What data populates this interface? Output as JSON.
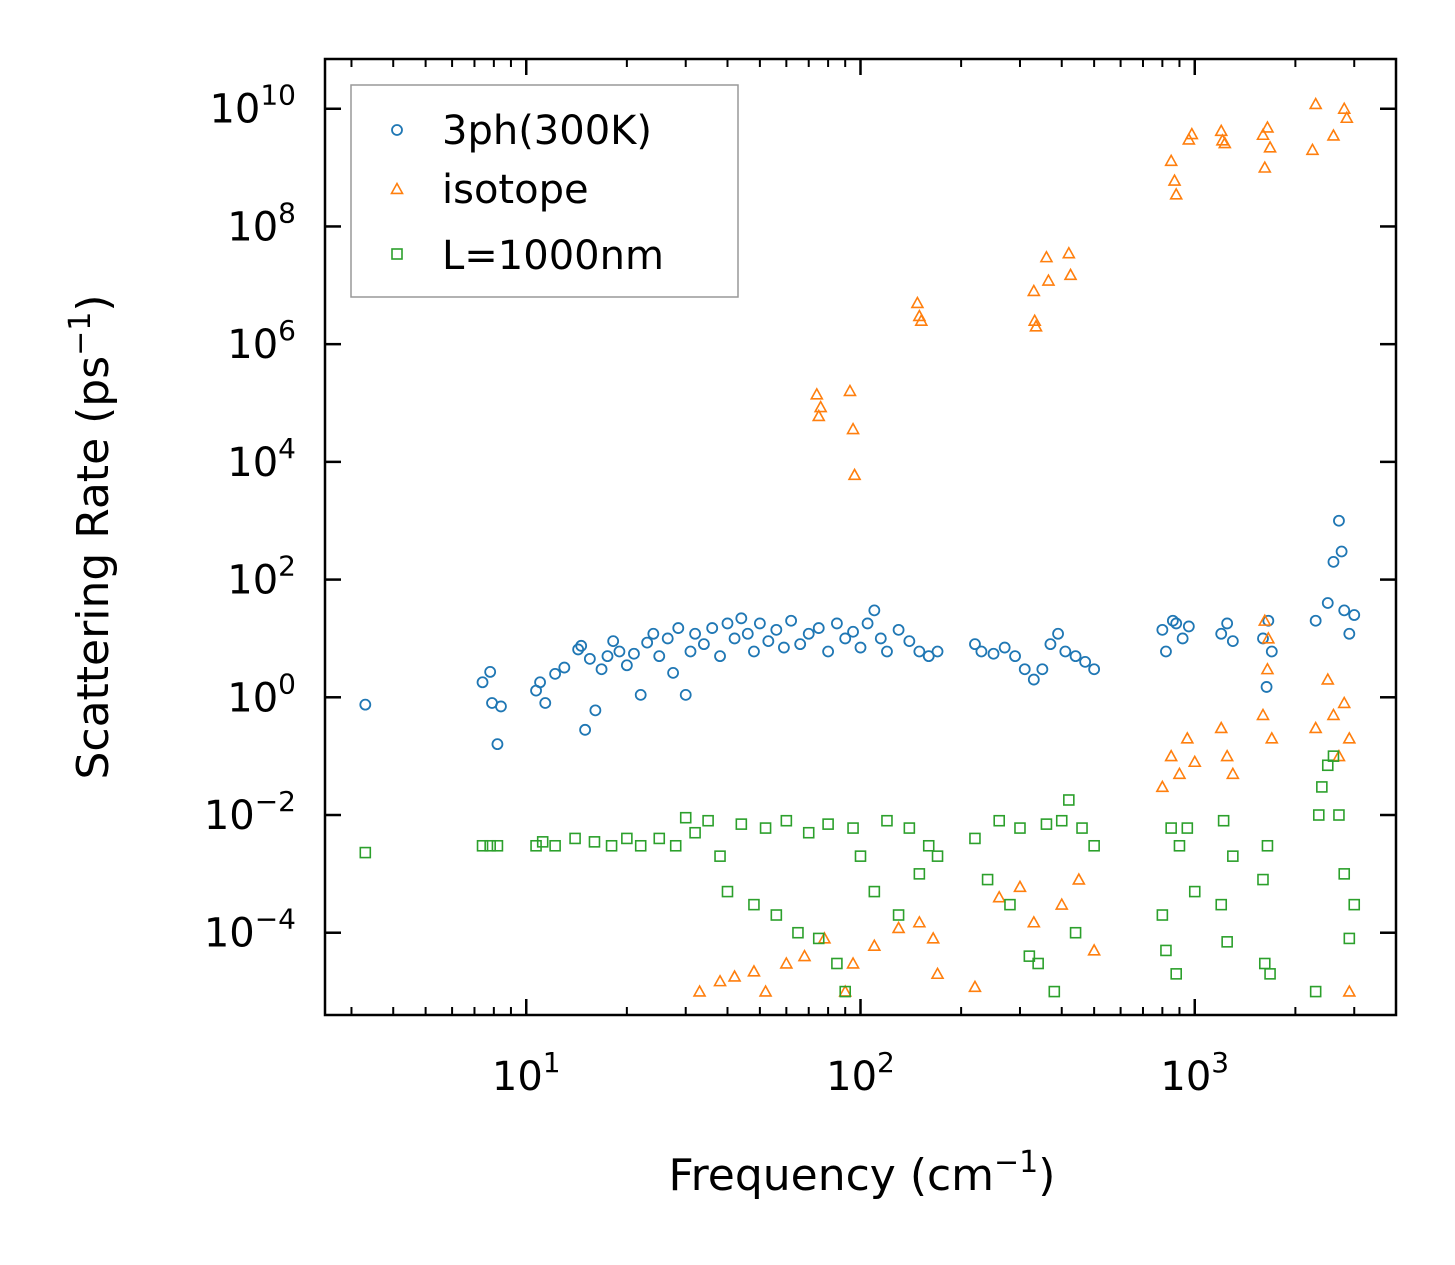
{
  "chart_data": {
    "type": "scatter",
    "title": "",
    "xlabel": "Frequency (cm",
    "xlabel_sup": "−1",
    "xlabel_end": ")",
    "ylabel": "Scattering Rate (ps",
    "ylabel_sup": "−1",
    "ylabel_end": ")",
    "xscale": "log",
    "yscale": "log",
    "xlim": [
      2.5,
      4000
    ],
    "ylim": [
      4e-06,
      70000000000
    ],
    "x_ticks": [
      {
        "value": 10,
        "base": "10",
        "exp": "1"
      },
      {
        "value": 100,
        "base": "10",
        "exp": "2"
      },
      {
        "value": 1000,
        "base": "10",
        "exp": "3"
      }
    ],
    "y_ticks": [
      {
        "value": 0.0001,
        "base": "10",
        "exp": "−4"
      },
      {
        "value": 0.01,
        "base": "10",
        "exp": "−2"
      },
      {
        "value": 1,
        "base": "10",
        "exp": "0"
      },
      {
        "value": 100,
        "base": "10",
        "exp": "2"
      },
      {
        "value": 10000,
        "base": "10",
        "exp": "4"
      },
      {
        "value": 1000000,
        "base": "10",
        "exp": "6"
      },
      {
        "value": 100000000,
        "base": "10",
        "exp": "8"
      },
      {
        "value": 10000000000,
        "base": "10",
        "exp": "10"
      }
    ],
    "legend_position": "top-left",
    "series": [
      {
        "name": "3ph(300K)",
        "marker": "circle",
        "color": "#1f77b4",
        "points": [
          [
            3.3,
            0.75
          ],
          [
            7.4,
            1.8
          ],
          [
            7.8,
            2.7
          ],
          [
            7.9,
            0.8
          ],
          [
            8.2,
            0.16
          ],
          [
            8.4,
            0.7
          ],
          [
            10.7,
            1.3
          ],
          [
            11.0,
            1.8
          ],
          [
            11.4,
            0.8
          ],
          [
            12.2,
            2.5
          ],
          [
            13.0,
            3.2
          ],
          [
            14.3,
            6.5
          ],
          [
            14.6,
            7.5
          ],
          [
            15.0,
            0.28
          ],
          [
            15.5,
            4.5
          ],
          [
            16.1,
            0.6
          ],
          [
            16.8,
            3.0
          ],
          [
            17.5,
            5.0
          ],
          [
            18.2,
            9.0
          ],
          [
            19.0,
            6.0
          ],
          [
            20.0,
            3.5
          ],
          [
            21.0,
            5.5
          ],
          [
            22.0,
            1.1
          ],
          [
            23.0,
            8.5
          ],
          [
            24.0,
            12.0
          ],
          [
            25.0,
            5.0
          ],
          [
            26.5,
            10.0
          ],
          [
            27.5,
            2.6
          ],
          [
            28.5,
            15.0
          ],
          [
            30.0,
            1.1
          ],
          [
            31.0,
            6.0
          ],
          [
            32.0,
            12.0
          ],
          [
            34.0,
            8.0
          ],
          [
            36.0,
            15.0
          ],
          [
            38.0,
            5.0
          ],
          [
            40.0,
            18.0
          ],
          [
            42.0,
            10.0
          ],
          [
            44.0,
            22.0
          ],
          [
            46.0,
            12.0
          ],
          [
            48.0,
            6.0
          ],
          [
            50.0,
            18.0
          ],
          [
            53.0,
            9.0
          ],
          [
            56.0,
            14.0
          ],
          [
            59.0,
            7.0
          ],
          [
            62.0,
            20.0
          ],
          [
            66.0,
            8.0
          ],
          [
            70.0,
            12.0
          ],
          [
            75.0,
            15.0
          ],
          [
            80.0,
            6.0
          ],
          [
            85.0,
            18.0
          ],
          [
            90.0,
            10.0
          ],
          [
            95.0,
            13.0
          ],
          [
            100.0,
            7.0
          ],
          [
            105.0,
            18.0
          ],
          [
            110.0,
            30.0
          ],
          [
            115.0,
            10.0
          ],
          [
            120.0,
            6.0
          ],
          [
            130.0,
            14.0
          ],
          [
            140.0,
            9.0
          ],
          [
            150.0,
            6.0
          ],
          [
            160.0,
            5.0
          ],
          [
            170.0,
            6.0
          ],
          [
            220.0,
            8.0
          ],
          [
            230.0,
            6.0
          ],
          [
            250.0,
            5.5
          ],
          [
            270.0,
            7.0
          ],
          [
            290.0,
            5.0
          ],
          [
            310.0,
            3.0
          ],
          [
            330.0,
            2.0
          ],
          [
            350.0,
            3.0
          ],
          [
            370.0,
            8.0
          ],
          [
            390.0,
            12.0
          ],
          [
            410.0,
            6.0
          ],
          [
            440.0,
            5.0
          ],
          [
            470.0,
            4.0
          ],
          [
            500.0,
            3.0
          ],
          [
            800.0,
            14.0
          ],
          [
            820.0,
            6.0
          ],
          [
            860.0,
            20.0
          ],
          [
            880.0,
            18.0
          ],
          [
            920.0,
            10.0
          ],
          [
            960.0,
            16.0
          ],
          [
            1200.0,
            12.0
          ],
          [
            1250.0,
            18.0
          ],
          [
            1300.0,
            9.0
          ],
          [
            1600.0,
            10.0
          ],
          [
            1640.0,
            1.5
          ],
          [
            1660.0,
            20.0
          ],
          [
            1700.0,
            6.0
          ],
          [
            2300.0,
            20.0
          ],
          [
            2500.0,
            40.0
          ],
          [
            2600.0,
            200.0
          ],
          [
            2700.0,
            1000.0
          ],
          [
            2750.0,
            300.0
          ],
          [
            2800.0,
            30.0
          ],
          [
            2900.0,
            12.0
          ],
          [
            3000.0,
            25.0
          ]
        ]
      },
      {
        "name": "isotope",
        "marker": "triangle",
        "color": "#ff7f0e",
        "points": [
          [
            33.0,
            1e-05
          ],
          [
            38.0,
            1.5e-05
          ],
          [
            42.0,
            1.8e-05
          ],
          [
            48.0,
            2.2e-05
          ],
          [
            52.0,
            1e-05
          ],
          [
            60.0,
            3e-05
          ],
          [
            68.0,
            4e-05
          ],
          [
            78.0,
            8e-05
          ],
          [
            90.0,
            1e-05
          ],
          [
            95.0,
            3e-05
          ],
          [
            110.0,
            6e-05
          ],
          [
            130.0,
            0.00012
          ],
          [
            150.0,
            0.00015
          ],
          [
            165.0,
            8e-05
          ],
          [
            170.0,
            2e-05
          ],
          [
            220.0,
            1.2e-05
          ],
          [
            260.0,
            0.0004
          ],
          [
            300.0,
            0.0006
          ],
          [
            330.0,
            0.00015
          ],
          [
            400.0,
            0.0003
          ],
          [
            450.0,
            0.0008
          ],
          [
            500.0,
            5e-05
          ],
          [
            74.0,
            140000
          ],
          [
            75.0,
            60000
          ],
          [
            76.0,
            85000
          ],
          [
            93.0,
            160000
          ],
          [
            95.0,
            36000
          ],
          [
            96.0,
            6000
          ],
          [
            148.0,
            5000000
          ],
          [
            150.0,
            3000000
          ],
          [
            152.0,
            2500000
          ],
          [
            330.0,
            8000000
          ],
          [
            332.0,
            2500000
          ],
          [
            335.0,
            2000000
          ],
          [
            360.0,
            30000000
          ],
          [
            365.0,
            12000000
          ],
          [
            420.0,
            35000000
          ],
          [
            425.0,
            15000000
          ],
          [
            850.0,
            1300000000
          ],
          [
            870.0,
            600000000
          ],
          [
            880.0,
            350000000
          ],
          [
            960.0,
            3000000000
          ],
          [
            980.0,
            3700000000
          ],
          [
            1200.0,
            4200000000
          ],
          [
            1210.0,
            2900000000
          ],
          [
            1230.0,
            2600000000
          ],
          [
            1600.0,
            3600000000
          ],
          [
            1620.0,
            1000000000
          ],
          [
            1650.0,
            4800000000
          ],
          [
            1680.0,
            2200000000
          ],
          [
            2250.0,
            2000000000
          ],
          [
            2300.0,
            12000000000
          ],
          [
            2600.0,
            3500000000
          ],
          [
            2800.0,
            10000000000
          ],
          [
            2850.0,
            7000000000
          ],
          [
            800.0,
            0.03
          ],
          [
            850.0,
            0.1
          ],
          [
            900.0,
            0.05
          ],
          [
            950.0,
            0.2
          ],
          [
            1000.0,
            0.08
          ],
          [
            1200.0,
            0.3
          ],
          [
            1250.0,
            0.1
          ],
          [
            1300.0,
            0.05
          ],
          [
            1600.0,
            0.5
          ],
          [
            1650.0,
            3.0
          ],
          [
            1700.0,
            0.2
          ],
          [
            2300.0,
            0.3
          ],
          [
            2500.0,
            2.0
          ],
          [
            2600.0,
            0.5
          ],
          [
            2700.0,
            0.1
          ],
          [
            2800.0,
            0.8
          ],
          [
            2900.0,
            0.2
          ],
          [
            1620.0,
            20.0
          ],
          [
            1660.0,
            10.0
          ],
          [
            2900.0,
            1e-05
          ]
        ]
      },
      {
        "name": "L=1000nm",
        "marker": "square",
        "color": "#2ca02c",
        "points": [
          [
            3.3,
            0.0023
          ],
          [
            7.4,
            0.003
          ],
          [
            7.8,
            0.003
          ],
          [
            8.2,
            0.003
          ],
          [
            10.7,
            0.003
          ],
          [
            11.2,
            0.0035
          ],
          [
            12.2,
            0.003
          ],
          [
            14.0,
            0.004
          ],
          [
            16.0,
            0.0035
          ],
          [
            18.0,
            0.003
          ],
          [
            20.0,
            0.004
          ],
          [
            22.0,
            0.003
          ],
          [
            25.0,
            0.004
          ],
          [
            28.0,
            0.003
          ],
          [
            30.0,
            0.009
          ],
          [
            32.0,
            0.005
          ],
          [
            35.0,
            0.008
          ],
          [
            38.0,
            0.002
          ],
          [
            40.0,
            0.0005
          ],
          [
            44.0,
            0.007
          ],
          [
            48.0,
            0.0003
          ],
          [
            52.0,
            0.006
          ],
          [
            56.0,
            0.0002
          ],
          [
            60.0,
            0.008
          ],
          [
            65.0,
            0.0001
          ],
          [
            70.0,
            0.005
          ],
          [
            75.0,
            8e-05
          ],
          [
            80.0,
            0.007
          ],
          [
            85.0,
            3e-05
          ],
          [
            90.0,
            1e-05
          ],
          [
            95.0,
            0.006
          ],
          [
            100.0,
            0.002
          ],
          [
            110.0,
            0.0005
          ],
          [
            120.0,
            0.008
          ],
          [
            130.0,
            0.0002
          ],
          [
            140.0,
            0.006
          ],
          [
            150.0,
            0.001
          ],
          [
            160.0,
            0.003
          ],
          [
            170.0,
            0.002
          ],
          [
            220.0,
            0.004
          ],
          [
            240.0,
            0.0008
          ],
          [
            260.0,
            0.008
          ],
          [
            280.0,
            0.0003
          ],
          [
            300.0,
            0.006
          ],
          [
            320.0,
            4e-05
          ],
          [
            340.0,
            3e-05
          ],
          [
            360.0,
            0.007
          ],
          [
            380.0,
            1e-05
          ],
          [
            400.0,
            0.008
          ],
          [
            420.0,
            0.018
          ],
          [
            440.0,
            0.0001
          ],
          [
            460.0,
            0.006
          ],
          [
            500.0,
            0.003
          ],
          [
            800.0,
            0.0002
          ],
          [
            820.0,
            5e-05
          ],
          [
            850.0,
            0.006
          ],
          [
            880.0,
            2e-05
          ],
          [
            900.0,
            0.003
          ],
          [
            950.0,
            0.006
          ],
          [
            1000.0,
            0.0005
          ],
          [
            1200.0,
            0.0003
          ],
          [
            1220.0,
            0.008
          ],
          [
            1250.0,
            7e-05
          ],
          [
            1300.0,
            0.002
          ],
          [
            1600.0,
            0.0008
          ],
          [
            1620.0,
            3e-05
          ],
          [
            1650.0,
            0.003
          ],
          [
            1680.0,
            2e-05
          ],
          [
            2300.0,
            1e-05
          ],
          [
            2350.0,
            0.01
          ],
          [
            2400.0,
            0.03
          ],
          [
            2500.0,
            0.07
          ],
          [
            2600.0,
            0.1
          ],
          [
            2700.0,
            0.01
          ],
          [
            2800.0,
            0.001
          ],
          [
            2900.0,
            8e-05
          ],
          [
            3000.0,
            0.0003
          ]
        ]
      }
    ]
  }
}
